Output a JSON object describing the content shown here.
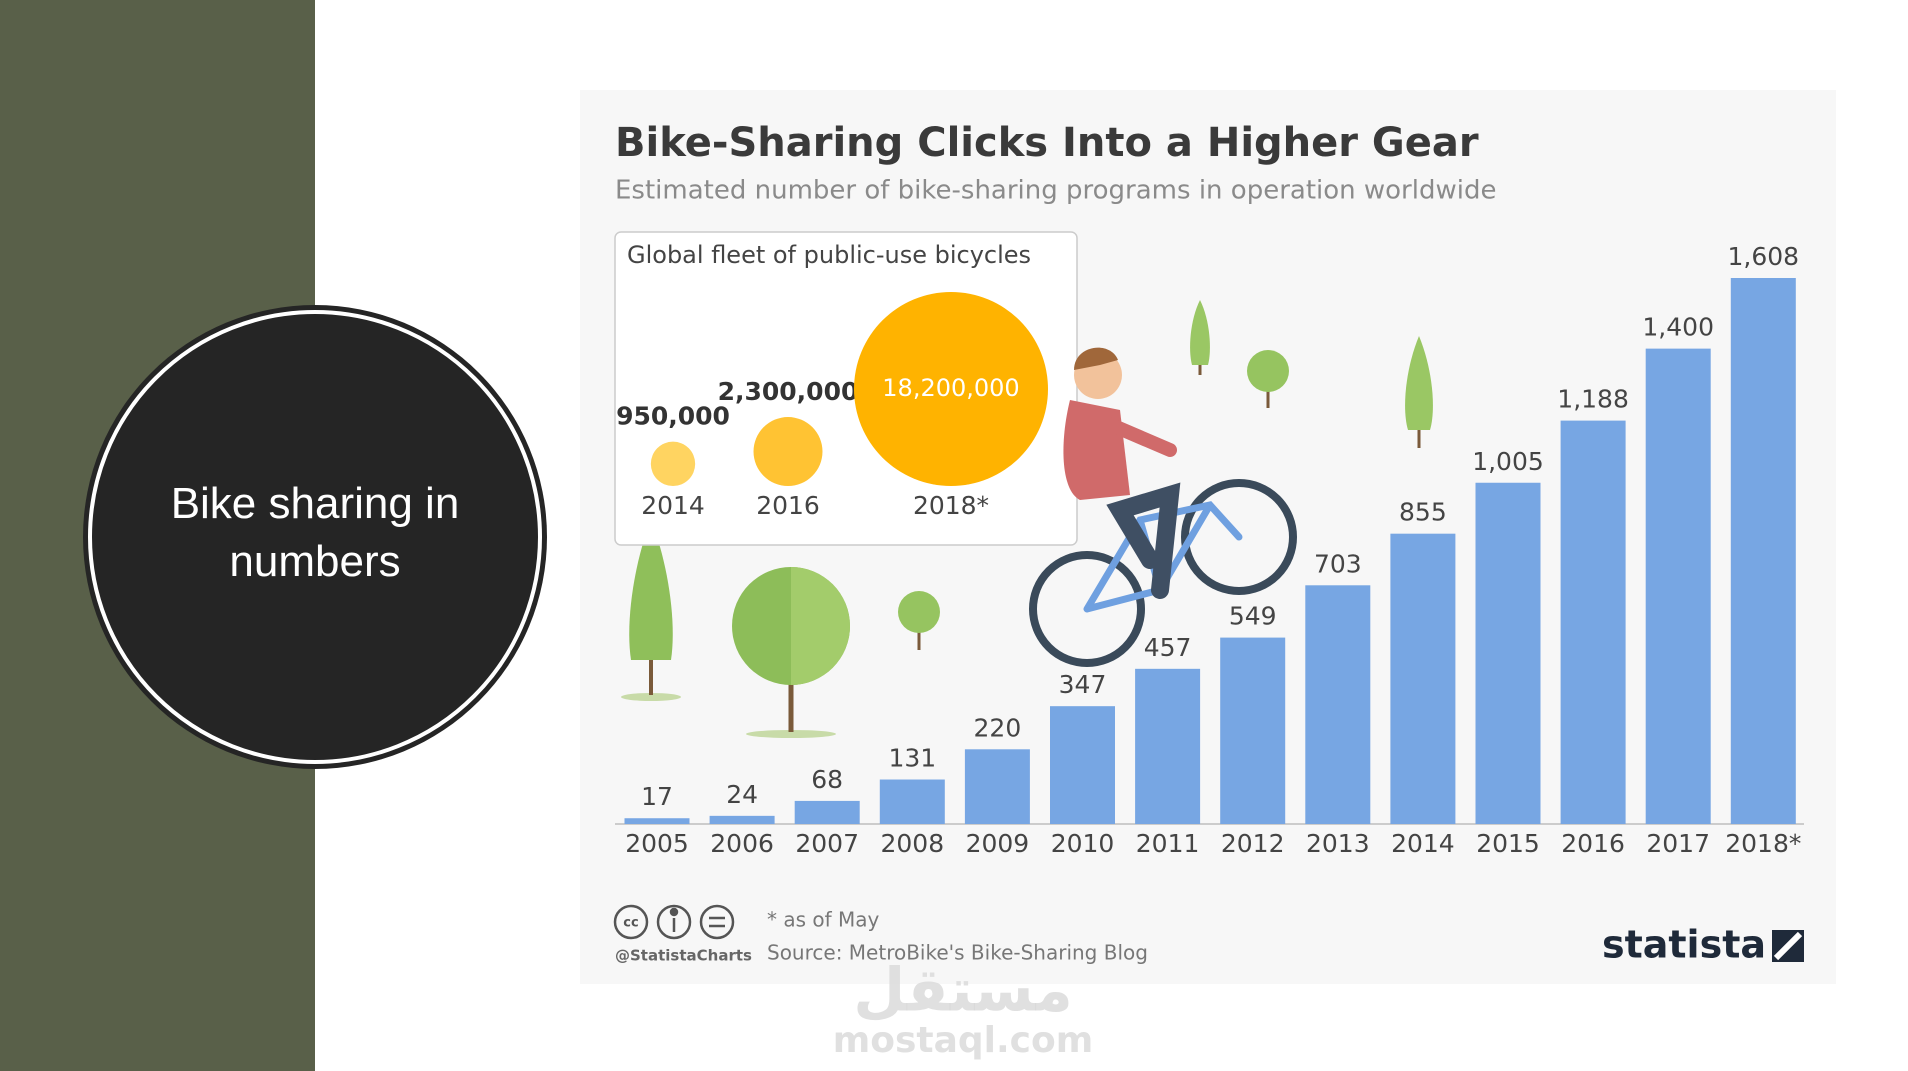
{
  "slide": {
    "title": "Bike sharing in numbers"
  },
  "chart_data": [
    {
      "type": "bar",
      "title": "Bike-Sharing Clicks Into a Higher Gear",
      "subtitle": "Estimated number of bike-sharing programs in operation worldwide",
      "categories": [
        "2005",
        "2006",
        "2007",
        "2008",
        "2009",
        "2010",
        "2011",
        "2012",
        "2013",
        "2014",
        "2015",
        "2016",
        "2017",
        "2018*"
      ],
      "values": [
        17,
        24,
        68,
        131,
        220,
        347,
        457,
        549,
        703,
        855,
        1005,
        1188,
        1400,
        1608
      ],
      "value_labels": [
        "17",
        "24",
        "68",
        "131",
        "220",
        "347",
        "457",
        "549",
        "703",
        "855",
        "1,005",
        "1,188",
        "1,400",
        "1,608"
      ],
      "color": "#77a6e3"
    },
    {
      "type": "bubble",
      "title": "Global fleet of public-use bicycles",
      "categories": [
        "2014",
        "2016",
        "2018*"
      ],
      "values": [
        950000,
        2300000,
        18200000
      ],
      "value_labels": [
        "950,000",
        "2,300,000",
        "18,200,000"
      ],
      "colors": [
        "#ffd461",
        "#ffc333",
        "#ffb300"
      ]
    }
  ],
  "footer": {
    "note": "* as of May",
    "source": "Source: MetroBike's Bike-Sharing Blog",
    "handle": "@StatistaCharts",
    "brand": "statista"
  },
  "watermark": {
    "arabic": "مستقل",
    "latin": "mostaql.com"
  }
}
